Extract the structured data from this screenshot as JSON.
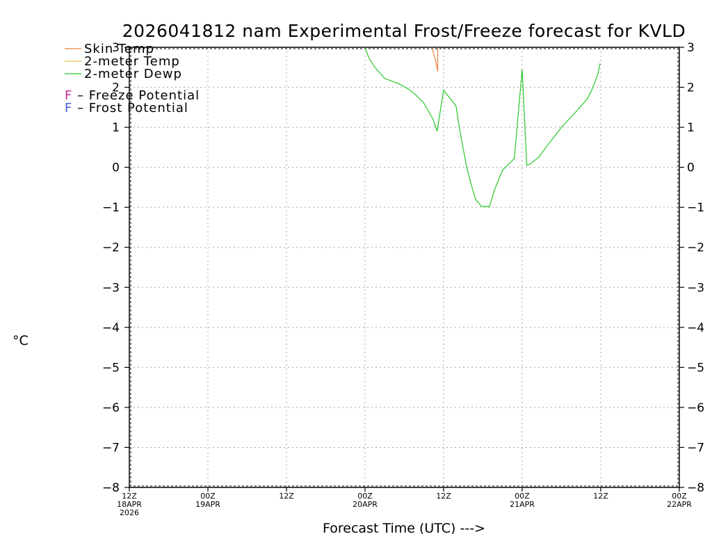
{
  "chart_data": {
    "type": "line",
    "title": "2026041812 nam Experimental Frost/Freeze forecast for KVLD",
    "xlabel": "Forecast Time (UTC) --->",
    "ylabel": "°C",
    "ylim": [
      -8,
      3
    ],
    "xlim": [
      0,
      84
    ],
    "grid": true,
    "y_ticks": [
      3,
      2,
      1,
      0,
      -1,
      -2,
      -3,
      -4,
      -5,
      -6,
      -7,
      -8
    ],
    "y_tick_labels": [
      "3",
      "2",
      "1",
      "0",
      "−1",
      "−2",
      "−3",
      "−4",
      "−5",
      "−6",
      "−7",
      "−8"
    ],
    "x_ticks": [
      {
        "x": 0,
        "lines": [
          "12Z",
          "18APR",
          "2026"
        ]
      },
      {
        "x": 12,
        "lines": [
          "00Z",
          "19APR"
        ]
      },
      {
        "x": 24,
        "lines": [
          "12Z"
        ]
      },
      {
        "x": 36,
        "lines": [
          "00Z",
          "20APR"
        ]
      },
      {
        "x": 48,
        "lines": [
          "12Z"
        ]
      },
      {
        "x": 60,
        "lines": [
          "00Z",
          "21APR"
        ]
      },
      {
        "x": 72,
        "lines": [
          "12Z"
        ]
      },
      {
        "x": 84,
        "lines": [
          "00Z",
          "22APR"
        ]
      }
    ],
    "legend": [
      {
        "label": "Skin Temp",
        "color": "#e8813a",
        "marker": "—"
      },
      {
        "label": "2-meter Temp",
        "color": "#e8c640",
        "marker": "—"
      },
      {
        "label": "2-meter Dewp",
        "color": "#26c626",
        "marker": "—"
      }
    ],
    "potential_legend": [
      {
        "label": "F  – Freeze Potential",
        "color": "#c0309a"
      },
      {
        "label": "F  – Frost Potential",
        "color": "#5060e0"
      }
    ],
    "series": [
      {
        "name": "Skin Temp",
        "color": "#e8813a",
        "x": [
          46.2,
          46.8,
          47.1,
          47.1
        ],
        "y": [
          3.0,
          2.65,
          2.4,
          3.0
        ]
      },
      {
        "name": "2-meter Dewp",
        "color": "#26c626",
        "x": [
          36.0,
          36.6,
          37.5,
          39.0,
          41.0,
          42.5,
          43.5,
          45.0,
          46.4,
          47.0,
          48.0,
          49.9,
          50.4,
          51.0,
          51.6,
          52.3,
          52.9,
          53.8,
          55.0,
          55.8,
          57.0,
          58.8,
          60.0,
          60.7,
          61.2,
          62.5,
          64.0,
          66.0,
          68.0,
          69.9,
          70.6,
          71.5,
          71.9
        ],
        "y": [
          3.0,
          2.73,
          2.5,
          2.22,
          2.1,
          1.97,
          1.85,
          1.6,
          1.2,
          0.9,
          1.93,
          1.53,
          1.0,
          0.45,
          -0.05,
          -0.48,
          -0.8,
          -0.98,
          -0.98,
          -0.55,
          -0.07,
          0.22,
          2.45,
          0.05,
          0.08,
          0.25,
          0.58,
          1.0,
          1.35,
          1.7,
          1.92,
          2.3,
          2.6
        ]
      }
    ]
  }
}
